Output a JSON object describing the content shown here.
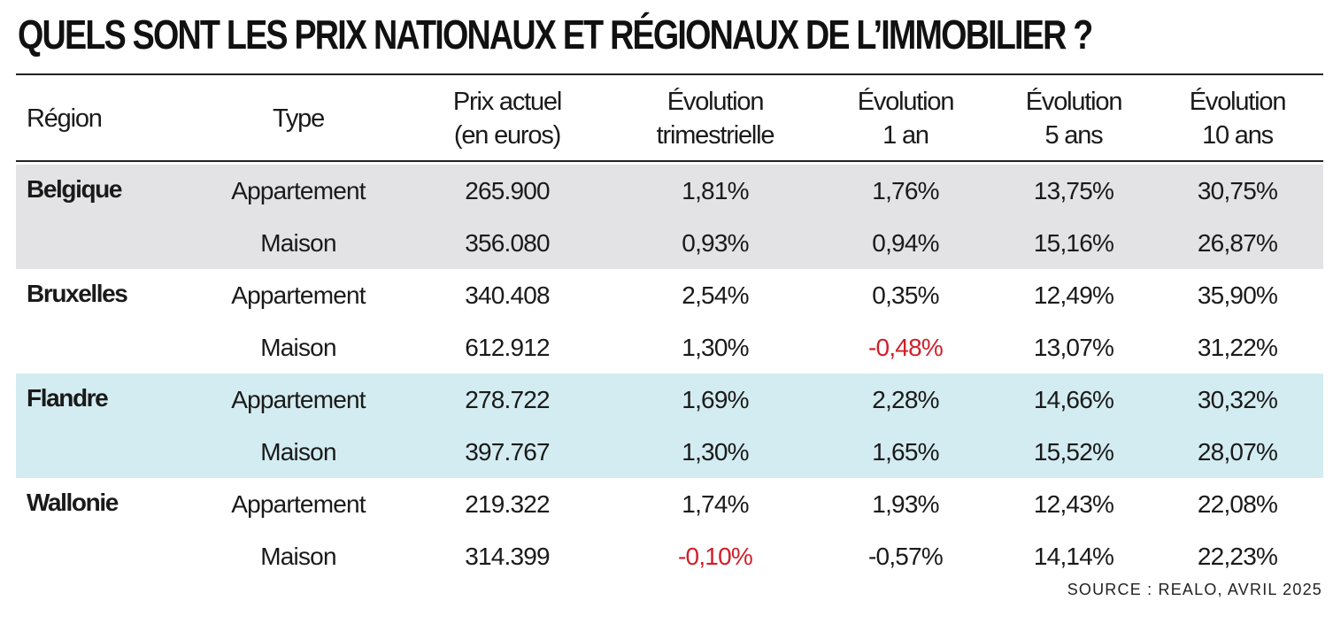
{
  "title": "QUELS SONT LES PRIX NATIONAUX ET RÉGIONAUX DE L’IMMOBILIER ?",
  "source": "SOURCE : REALO, AVRIL 2025",
  "colors": {
    "band_gray": "#e3e3e5",
    "band_blue": "#d3ecf1",
    "negative": "#d0202a"
  },
  "chart_data": {
    "type": "table",
    "title": "QUELS SONT LES PRIX NATIONAUX ET RÉGIONAUX DE L’IMMOBILIER ?",
    "columns": [
      {
        "key": "region",
        "lines": [
          "Région"
        ]
      },
      {
        "key": "type",
        "lines": [
          "Type"
        ]
      },
      {
        "key": "prix",
        "lines": [
          "Prix actuel",
          "(en euros)"
        ]
      },
      {
        "key": "trim",
        "lines": [
          "Évolution",
          "trimestrielle"
        ]
      },
      {
        "key": "an1",
        "lines": [
          "Évolution",
          "1 an"
        ]
      },
      {
        "key": "ans5",
        "lines": [
          "Évolution",
          "5 ans"
        ]
      },
      {
        "key": "ans10",
        "lines": [
          "Évolution",
          "10 ans"
        ]
      }
    ],
    "groups": [
      {
        "region": "Belgique",
        "band": "band_gray",
        "rows": [
          {
            "type": "Appartement",
            "prix": "265.900",
            "trim": "1,81%",
            "an1": "1,76%",
            "ans5": "13,75%",
            "ans10": "30,75%"
          },
          {
            "type": "Maison",
            "prix": "356.080",
            "trim": "0,93%",
            "an1": "0,94%",
            "ans5": "15,16%",
            "ans10": "26,87%"
          }
        ]
      },
      {
        "region": "Bruxelles",
        "band": null,
        "rows": [
          {
            "type": "Appartement",
            "prix": "340.408",
            "trim": "2,54%",
            "an1": "0,35%",
            "ans5": "12,49%",
            "ans10": "35,90%"
          },
          {
            "type": "Maison",
            "prix": "612.912",
            "trim": "1,30%",
            "an1": "-0,48%",
            "ans5": "13,07%",
            "ans10": "31,22%"
          }
        ]
      },
      {
        "region": "Flandre",
        "band": "band_blue",
        "rows": [
          {
            "type": "Appartement",
            "prix": "278.722",
            "trim": "1,69%",
            "an1": "2,28%",
            "ans5": "14,66%",
            "ans10": "30,32%"
          },
          {
            "type": "Maison",
            "prix": "397.767",
            "trim": "1,30%",
            "an1": "1,65%",
            "ans5": "15,52%",
            "ans10": "28,07%"
          }
        ]
      },
      {
        "region": "Wallonie",
        "band": null,
        "rows": [
          {
            "type": "Appartement",
            "prix": "219.322",
            "trim": "1,74%",
            "an1": "1,93%",
            "ans5": "12,43%",
            "ans10": "22,08%"
          },
          {
            "type": "Maison",
            "prix": "314.399",
            "trim": "-0,10%",
            "an1": "-0,57%",
            "ans5": "14,14%",
            "ans10": "22,23%"
          }
        ]
      }
    ],
    "highlighted_negative": [
      "Bruxelles.Maison.an1",
      "Wallonie.Maison.trim"
    ]
  }
}
